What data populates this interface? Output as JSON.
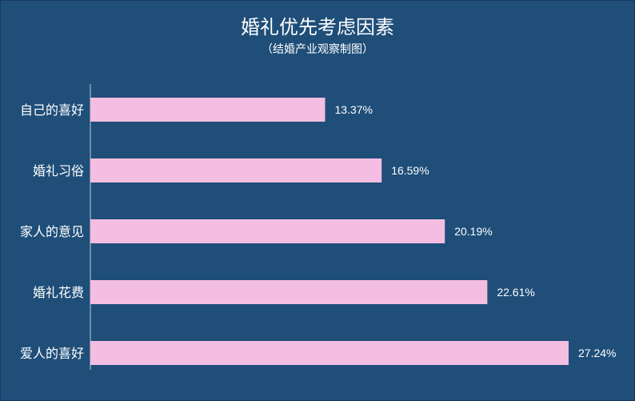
{
  "chart_data": {
    "type": "bar",
    "orientation": "horizontal",
    "title": "婚礼优先考虑因素",
    "subtitle": "（结婚产业观察制图）",
    "categories": [
      "自己的喜好",
      "婚礼习俗",
      "家人的意见",
      "婚礼花费",
      "爱人的喜好"
    ],
    "values": [
      13.37,
      16.59,
      20.19,
      22.61,
      27.24
    ],
    "value_labels": [
      "13.37%",
      "16.59%",
      "20.19%",
      "22.61%",
      "27.24%"
    ],
    "unit": "%",
    "xlim": [
      0,
      27.24
    ],
    "grid": false,
    "legend": "none",
    "colors": {
      "background": "#1f4e79",
      "bar": "#f4bde2",
      "text": "#ffffff"
    }
  }
}
